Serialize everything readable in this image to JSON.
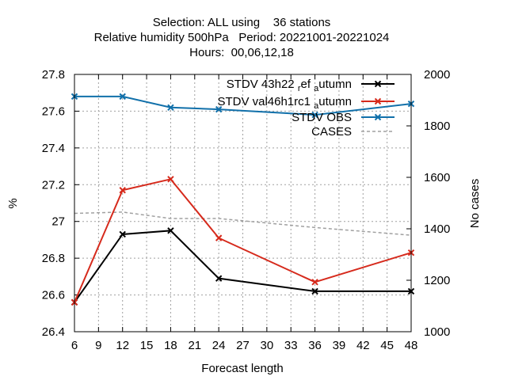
{
  "chart_data": {
    "type": "line",
    "title_lines": [
      "Selection: ALL using    36 stations",
      "Relative humidity 500hPa   Period: 20221001-20221024",
      "Hours:  00,06,12,18"
    ],
    "xlabel": "Forecast length",
    "ylabel": "%",
    "y2label": "No cases",
    "xlim": [
      6,
      48
    ],
    "ylim": [
      26.4,
      27.8
    ],
    "y2lim": [
      1000,
      2000
    ],
    "xticks": [
      6,
      9,
      12,
      15,
      18,
      21,
      24,
      27,
      30,
      33,
      36,
      39,
      42,
      45,
      48
    ],
    "yticks": [
      "26.4",
      "26.6",
      "26.8",
      "27",
      "27.2",
      "27.4",
      "27.6",
      "27.8"
    ],
    "y2ticks": [
      "1000",
      "1200",
      "1400",
      "1600",
      "1800",
      "2000"
    ],
    "grid": true,
    "legend_position": "top-right",
    "x": [
      6,
      12,
      18,
      24,
      36,
      48
    ],
    "series": [
      {
        "name": "STDV 43h22 ref autumn",
        "legend_main": "STDV 43h22",
        "legend_sub1": "r",
        "legend_mid": "ef",
        "legend_sub2": "a",
        "legend_end": "utumn",
        "color": "#000000",
        "axis": "y",
        "marker": "x",
        "values": [
          26.56,
          26.93,
          26.95,
          26.69,
          26.62,
          26.62
        ]
      },
      {
        "name": "STDV val46h1rc1 autumn",
        "legend_main": "STDV val46h1rc1",
        "legend_sub2": "a",
        "legend_end": "utumn",
        "color": "#d62a1c",
        "axis": "y",
        "marker": "x",
        "values": [
          26.56,
          27.17,
          27.23,
          26.91,
          26.67,
          26.83
        ]
      },
      {
        "name": "STDV OBS",
        "legend_main": "STDV OBS",
        "color": "#1170aa",
        "axis": "y",
        "marker": "x",
        "values": [
          27.68,
          27.68,
          27.62,
          27.61,
          27.58,
          27.64
        ]
      },
      {
        "name": "CASES",
        "legend_main": "CASES",
        "color": "#a0a0a0",
        "axis": "y2",
        "marker": "none",
        "dashed": true,
        "values": [
          1460,
          1465,
          1440,
          1440,
          1405,
          1375
        ]
      }
    ]
  }
}
